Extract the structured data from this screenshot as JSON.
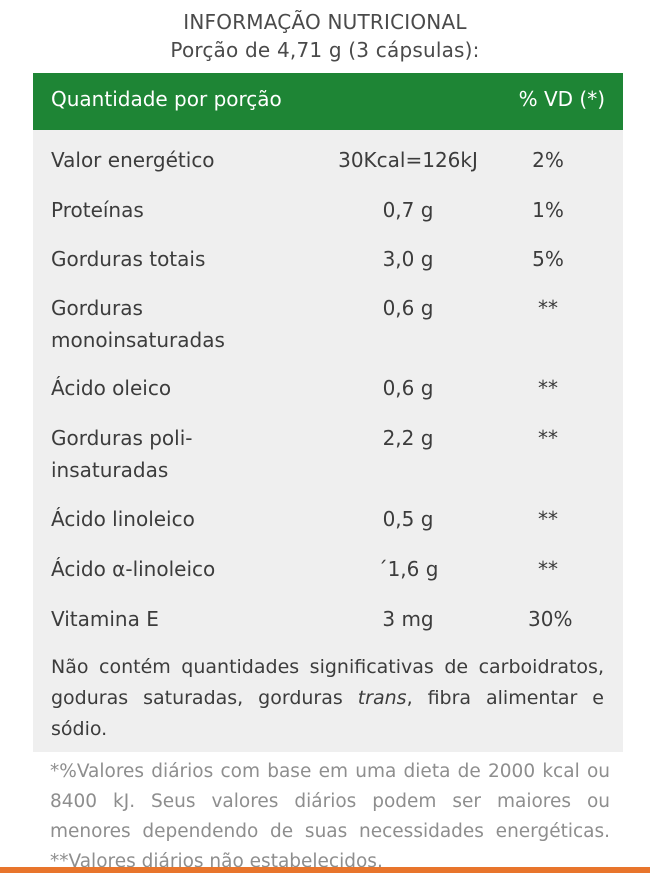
{
  "header": {
    "title": "INFORMAÇÃO NUTRICIONAL",
    "serving": "Porção de 4,71 g (3 cápsulas):"
  },
  "table": {
    "col_quantity": "Quantidade por porção",
    "col_dv": "% VD (*)",
    "rows": [
      {
        "name": "Valor energético",
        "amount": "30Kcal=126kJ",
        "dv": "2%"
      },
      {
        "name": "Proteínas",
        "amount": "0,7 g",
        "dv": "1%"
      },
      {
        "name": "Gorduras totais",
        "amount": "3,0 g",
        "dv": "5%"
      },
      {
        "name": "Gorduras monoinsaturadas",
        "amount": "0,6 g",
        "dv": "**"
      },
      {
        "name": "Ácido oleico",
        "amount": "0,6 g",
        "dv": "**"
      },
      {
        "name": "Gorduras poli-insaturadas",
        "amount": "2,2 g",
        "dv": "**"
      },
      {
        "name": "Ácido linoleico",
        "amount": "0,5 g",
        "dv": "**"
      },
      {
        "name": "Ácido α-linoleico",
        "amount": "´1,6 g",
        "dv": "**"
      },
      {
        "name": "Vitamina E",
        "amount": "3 mg",
        "dv": "30%"
      }
    ],
    "note_before": "Não contém quantidades significativas de carboidratos, goduras saturadas, gorduras ",
    "note_trans": "trans",
    "note_after": ", fibra alimentar e sódio."
  },
  "footnote": "*%Valores diários com base em uma dieta de 2000 kcal ou 8400 kJ. Seus valores diários podem ser maiores ou menores dependendo de suas necessidades energéticas. **Valores diários não estabelecidos."
}
